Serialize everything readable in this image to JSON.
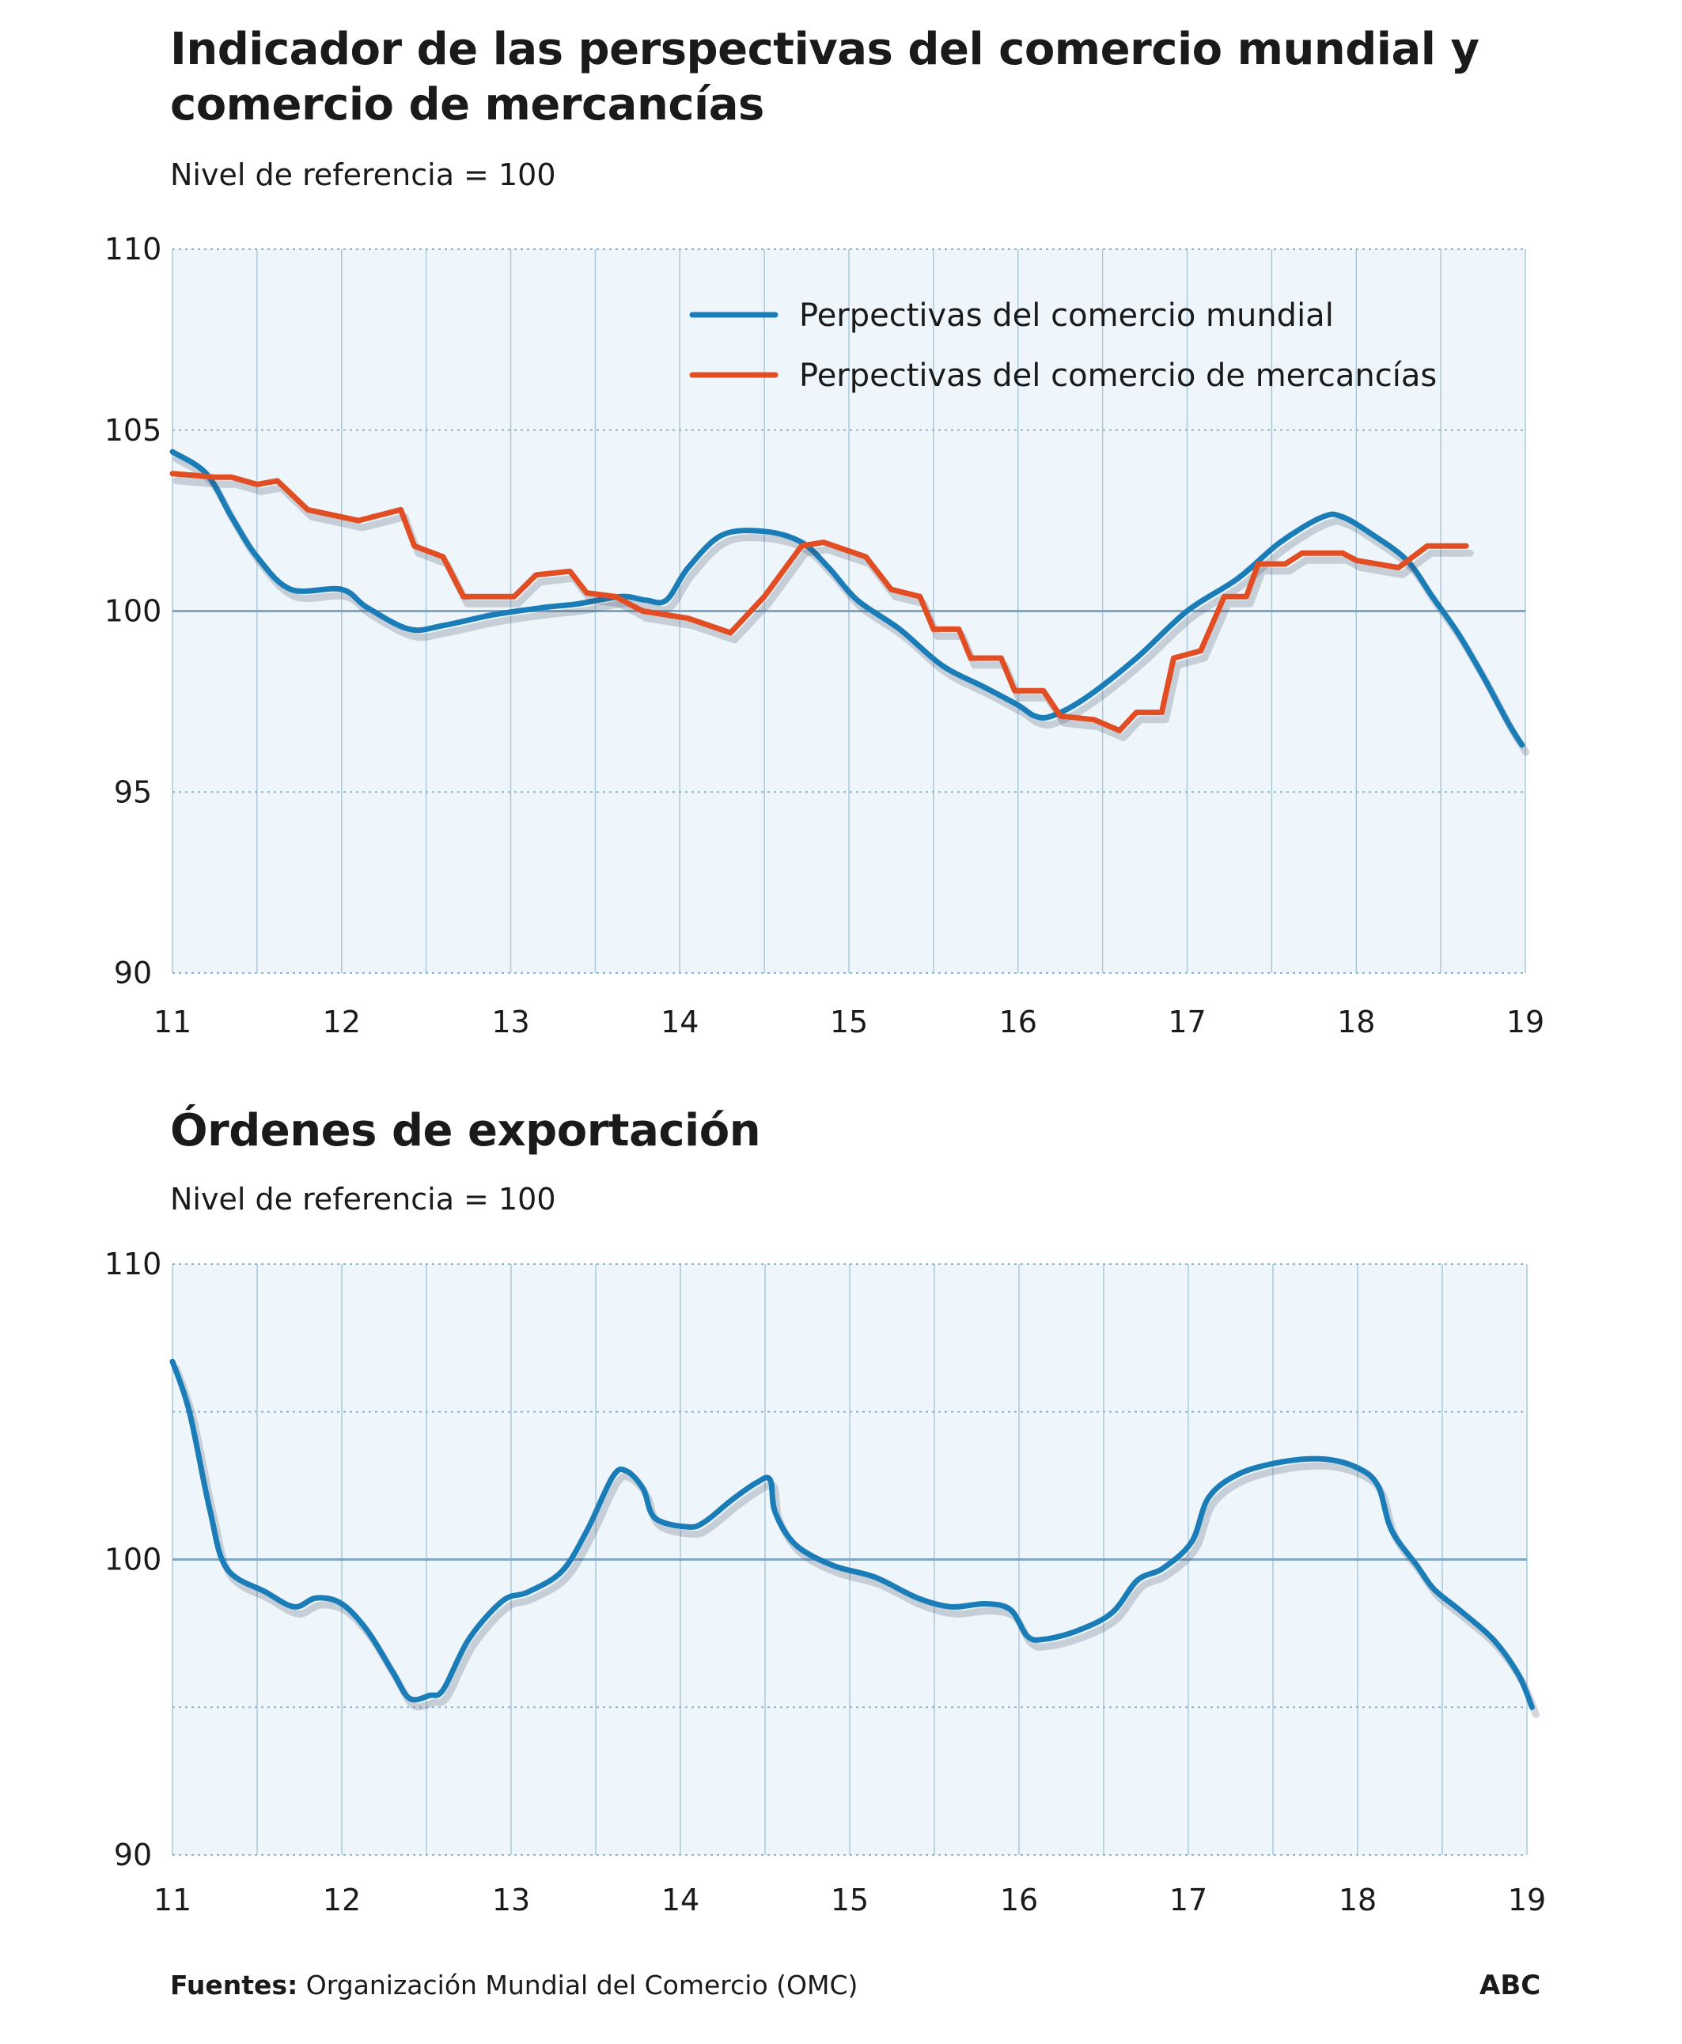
{
  "chart_data": [
    {
      "type": "line",
      "title": "Indicador de las perspectivas del comercio mundial y comercio de mercancías",
      "subtitle": "Nivel de referencia = 100",
      "ylim": [
        90,
        110
      ],
      "yticks": [
        "110",
        "105",
        "100",
        "95",
        "90"
      ],
      "xlim": [
        11,
        19
      ],
      "xticks": [
        "11",
        "12",
        "13",
        "14",
        "15",
        "16",
        "17",
        "18",
        "19"
      ],
      "legend_position": "top-right",
      "grid": true,
      "series": [
        {
          "name": "Perpectivas del comercio mundial",
          "color": "#1b7db8",
          "points": [
            [
              11.0,
              104.4
            ],
            [
              11.2,
              103.8
            ],
            [
              11.35,
              102.6
            ],
            [
              11.5,
              101.5
            ],
            [
              11.7,
              100.6
            ],
            [
              12.0,
              100.6
            ],
            [
              12.15,
              100.1
            ],
            [
              12.4,
              99.5
            ],
            [
              12.6,
              99.6
            ],
            [
              12.9,
              99.9
            ],
            [
              13.2,
              100.1
            ],
            [
              13.4,
              100.2
            ],
            [
              13.65,
              100.4
            ],
            [
              13.8,
              100.3
            ],
            [
              13.92,
              100.3
            ],
            [
              14.05,
              101.2
            ],
            [
              14.25,
              102.1
            ],
            [
              14.5,
              102.2
            ],
            [
              14.72,
              101.9
            ],
            [
              14.88,
              101.2
            ],
            [
              15.05,
              100.3
            ],
            [
              15.3,
              99.5
            ],
            [
              15.55,
              98.5
            ],
            [
              15.8,
              97.9
            ],
            [
              16.0,
              97.4
            ],
            [
              16.1,
              97.1
            ],
            [
              16.2,
              97.1
            ],
            [
              16.4,
              97.6
            ],
            [
              16.7,
              98.7
            ],
            [
              17.0,
              100.0
            ],
            [
              17.3,
              100.9
            ],
            [
              17.55,
              101.9
            ],
            [
              17.8,
              102.6
            ],
            [
              17.92,
              102.6
            ],
            [
              18.1,
              102.1
            ],
            [
              18.3,
              101.4
            ],
            [
              18.45,
              100.4
            ],
            [
              18.6,
              99.4
            ],
            [
              18.75,
              98.2
            ],
            [
              18.9,
              96.9
            ],
            [
              18.98,
              96.3
            ]
          ]
        },
        {
          "name": "Perpectivas del comercio de mercancías",
          "color": "#e24e24",
          "points": [
            [
              11.0,
              103.8
            ],
            [
              11.25,
              103.7
            ],
            [
              11.35,
              103.7
            ],
            [
              11.5,
              103.5
            ],
            [
              11.62,
              103.6
            ],
            [
              11.8,
              102.8
            ],
            [
              12.1,
              102.5
            ],
            [
              12.35,
              102.8
            ],
            [
              12.43,
              101.8
            ],
            [
              12.6,
              101.5
            ],
            [
              12.72,
              100.4
            ],
            [
              12.9,
              100.4
            ],
            [
              13.02,
              100.4
            ],
            [
              13.15,
              101.0
            ],
            [
              13.35,
              101.1
            ],
            [
              13.45,
              100.5
            ],
            [
              13.62,
              100.4
            ],
            [
              13.78,
              100.0
            ],
            [
              14.05,
              99.8
            ],
            [
              14.3,
              99.4
            ],
            [
              14.5,
              100.4
            ],
            [
              14.72,
              101.8
            ],
            [
              14.85,
              101.9
            ],
            [
              15.1,
              101.5
            ],
            [
              15.25,
              100.6
            ],
            [
              15.42,
              100.4
            ],
            [
              15.5,
              99.5
            ],
            [
              15.65,
              99.5
            ],
            [
              15.72,
              98.7
            ],
            [
              15.9,
              98.7
            ],
            [
              15.98,
              97.8
            ],
            [
              16.15,
              97.8
            ],
            [
              16.25,
              97.1
            ],
            [
              16.45,
              97.0
            ],
            [
              16.6,
              96.7
            ],
            [
              16.7,
              97.2
            ],
            [
              16.85,
              97.2
            ],
            [
              16.92,
              98.7
            ],
            [
              17.08,
              98.9
            ],
            [
              17.22,
              100.4
            ],
            [
              17.35,
              100.4
            ],
            [
              17.42,
              101.3
            ],
            [
              17.58,
              101.3
            ],
            [
              17.68,
              101.6
            ],
            [
              17.92,
              101.6
            ],
            [
              18.0,
              101.4
            ],
            [
              18.25,
              101.2
            ],
            [
              18.42,
              101.8
            ],
            [
              18.65,
              101.8
            ]
          ]
        }
      ]
    },
    {
      "type": "line",
      "title": "Órdenes de exportación",
      "subtitle": "Nivel de referencia = 100",
      "ylim": [
        90,
        110
      ],
      "yticks": [
        "110",
        "100",
        "90"
      ],
      "xlim": [
        11,
        19
      ],
      "xticks": [
        "11",
        "12",
        "13",
        "14",
        "15",
        "16",
        "17",
        "18",
        "19"
      ],
      "grid": true,
      "series": [
        {
          "color": "#1b7db8",
          "points": [
            [
              11.0,
              106.7
            ],
            [
              11.1,
              105.0
            ],
            [
              11.22,
              101.7
            ],
            [
              11.32,
              99.7
            ],
            [
              11.55,
              98.9
            ],
            [
              11.72,
              98.4
            ],
            [
              11.85,
              98.7
            ],
            [
              12.0,
              98.5
            ],
            [
              12.15,
              97.6
            ],
            [
              12.3,
              96.2
            ],
            [
              12.4,
              95.3
            ],
            [
              12.52,
              95.4
            ],
            [
              12.6,
              95.6
            ],
            [
              12.75,
              97.3
            ],
            [
              12.95,
              98.6
            ],
            [
              13.1,
              98.9
            ],
            [
              13.3,
              99.6
            ],
            [
              13.45,
              101.0
            ],
            [
              13.6,
              102.8
            ],
            [
              13.68,
              103.0
            ],
            [
              13.78,
              102.4
            ],
            [
              13.85,
              101.4
            ],
            [
              14.05,
              101.1
            ],
            [
              14.15,
              101.3
            ],
            [
              14.3,
              102.0
            ],
            [
              14.45,
              102.6
            ],
            [
              14.53,
              102.7
            ],
            [
              14.56,
              101.6
            ],
            [
              14.68,
              100.5
            ],
            [
              14.9,
              99.8
            ],
            [
              15.15,
              99.4
            ],
            [
              15.4,
              98.7
            ],
            [
              15.6,
              98.4
            ],
            [
              15.8,
              98.5
            ],
            [
              15.95,
              98.3
            ],
            [
              16.05,
              97.4
            ],
            [
              16.15,
              97.3
            ],
            [
              16.35,
              97.6
            ],
            [
              16.55,
              98.2
            ],
            [
              16.7,
              99.3
            ],
            [
              16.85,
              99.7
            ],
            [
              17.02,
              100.6
            ],
            [
              17.12,
              102.1
            ],
            [
              17.3,
              102.9
            ],
            [
              17.55,
              103.3
            ],
            [
              17.8,
              103.4
            ],
            [
              18.0,
              103.1
            ],
            [
              18.12,
              102.5
            ],
            [
              18.2,
              101.0
            ],
            [
              18.35,
              99.8
            ],
            [
              18.45,
              99.0
            ],
            [
              18.6,
              98.3
            ],
            [
              18.8,
              97.3
            ],
            [
              18.95,
              96.1
            ],
            [
              19.03,
              95.0
            ]
          ]
        }
      ]
    }
  ],
  "footer": {
    "source_label": "Fuentes:",
    "source_text": " Organización Mundial del Comercio (OMC)",
    "brand": "ABC"
  }
}
